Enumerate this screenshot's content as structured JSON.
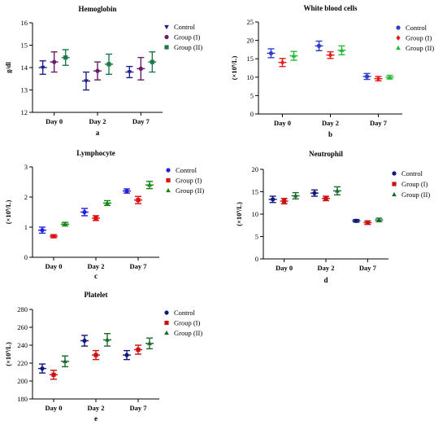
{
  "chart_data": [
    {
      "type": "scatter",
      "title": "Hemoglobin",
      "ylabel": "g/dl",
      "panel_label": "a",
      "categories": [
        "Day 0",
        "Day 2",
        "Day 7"
      ],
      "ylim": [
        12,
        16
      ],
      "yticks": [
        "12",
        "13",
        "14",
        "15",
        "16"
      ],
      "series": [
        {
          "name": "Control",
          "color": "#1f1f8f",
          "marker": "triangle-down",
          "values": [
            14.0,
            13.4,
            13.8
          ],
          "err": [
            0.3,
            0.4,
            0.25
          ]
        },
        {
          "name": "Group (I)",
          "color": "#6a1a6a",
          "marker": "circle",
          "values": [
            14.25,
            13.85,
            13.95
          ],
          "err": [
            0.45,
            0.4,
            0.5
          ]
        },
        {
          "name": "Group (II)",
          "color": "#1a7a4a",
          "marker": "square",
          "values": [
            14.45,
            14.15,
            14.25
          ],
          "err": [
            0.35,
            0.45,
            0.45
          ]
        }
      ]
    },
    {
      "type": "scatter",
      "title": "White blood cells",
      "ylabel": "(×10⁹/L)",
      "panel_label": "b",
      "categories": [
        "Day 0",
        "Day 2",
        "Day 7"
      ],
      "ylim": [
        0,
        25
      ],
      "yticks": [
        "0",
        "5",
        "10",
        "15",
        "20",
        "25"
      ],
      "series": [
        {
          "name": "Control",
          "color": "#2e3ec8",
          "marker": "circle",
          "values": [
            16.5,
            18.5,
            10.2
          ],
          "err": [
            1.2,
            1.3,
            0.8
          ]
        },
        {
          "name": "Group (I)",
          "color": "#e81a1a",
          "marker": "diamond",
          "values": [
            14.0,
            16.0,
            9.6
          ],
          "err": [
            1.1,
            0.9,
            0.6
          ]
        },
        {
          "name": "Group (II)",
          "color": "#22bb33",
          "marker": "triangle",
          "values": [
            15.8,
            17.3,
            10.0
          ],
          "err": [
            1.2,
            1.2,
            0.5
          ]
        }
      ]
    },
    {
      "type": "scatter",
      "title": "Lymphocyte",
      "ylabel": "(×10⁹/L)",
      "panel_label": "c",
      "categories": [
        "Day 0",
        "Day 2",
        "Day 7"
      ],
      "ylim": [
        0,
        3
      ],
      "yticks": [
        "0",
        "1",
        "2",
        "3"
      ],
      "series": [
        {
          "name": "Control",
          "color": "#2222dd",
          "marker": "circle",
          "values": [
            0.9,
            1.5,
            2.2
          ],
          "err": [
            0.1,
            0.12,
            0.07
          ]
        },
        {
          "name": "Group (I)",
          "color": "#dd1111",
          "marker": "square",
          "values": [
            0.7,
            1.3,
            1.9
          ],
          "err": [
            0.05,
            0.08,
            0.12
          ]
        },
        {
          "name": "Group (II)",
          "color": "#118811",
          "marker": "triangle",
          "values": [
            1.1,
            1.8,
            2.4
          ],
          "err": [
            0.06,
            0.08,
            0.12
          ]
        }
      ]
    },
    {
      "type": "scatter",
      "title": "Neutrophil",
      "ylabel": "(×10⁹/L)",
      "panel_label": "d",
      "categories": [
        "Day 0",
        "Day 2",
        "Day 7"
      ],
      "ylim": [
        0,
        20
      ],
      "yticks": [
        "0",
        "5",
        "10",
        "15",
        "20"
      ],
      "series": [
        {
          "name": "Control",
          "color": "#101a7a",
          "marker": "circle",
          "values": [
            13.3,
            14.7,
            8.5
          ],
          "err": [
            0.7,
            0.7,
            0.3
          ]
        },
        {
          "name": "Group (I)",
          "color": "#cc1111",
          "marker": "square",
          "values": [
            12.9,
            13.5,
            8.1
          ],
          "err": [
            0.6,
            0.5,
            0.4
          ]
        },
        {
          "name": "Group (II)",
          "color": "#1a6a2a",
          "marker": "triangle",
          "values": [
            14.1,
            15.2,
            8.7
          ],
          "err": [
            0.7,
            0.9,
            0.4
          ]
        }
      ]
    },
    {
      "type": "scatter",
      "title": "Platelet",
      "ylabel": "(×10⁹/L)",
      "panel_label": "e",
      "categories": [
        "Day 0",
        "Day 2",
        "Day 7"
      ],
      "ylim": [
        180,
        280
      ],
      "yticks": [
        "180",
        "200",
        "220",
        "240",
        "260",
        "280"
      ],
      "series": [
        {
          "name": "Control",
          "color": "#101a7a",
          "marker": "circle",
          "values": [
            214,
            245,
            229
          ],
          "err": [
            5,
            6,
            5
          ]
        },
        {
          "name": "Group (I)",
          "color": "#cc1111",
          "marker": "square",
          "values": [
            207,
            229,
            235
          ],
          "err": [
            5,
            5,
            5
          ]
        },
        {
          "name": "Group (II)",
          "color": "#1a6a2a",
          "marker": "triangle",
          "values": [
            222,
            246,
            242
          ],
          "err": [
            6,
            7,
            6
          ]
        }
      ]
    }
  ]
}
